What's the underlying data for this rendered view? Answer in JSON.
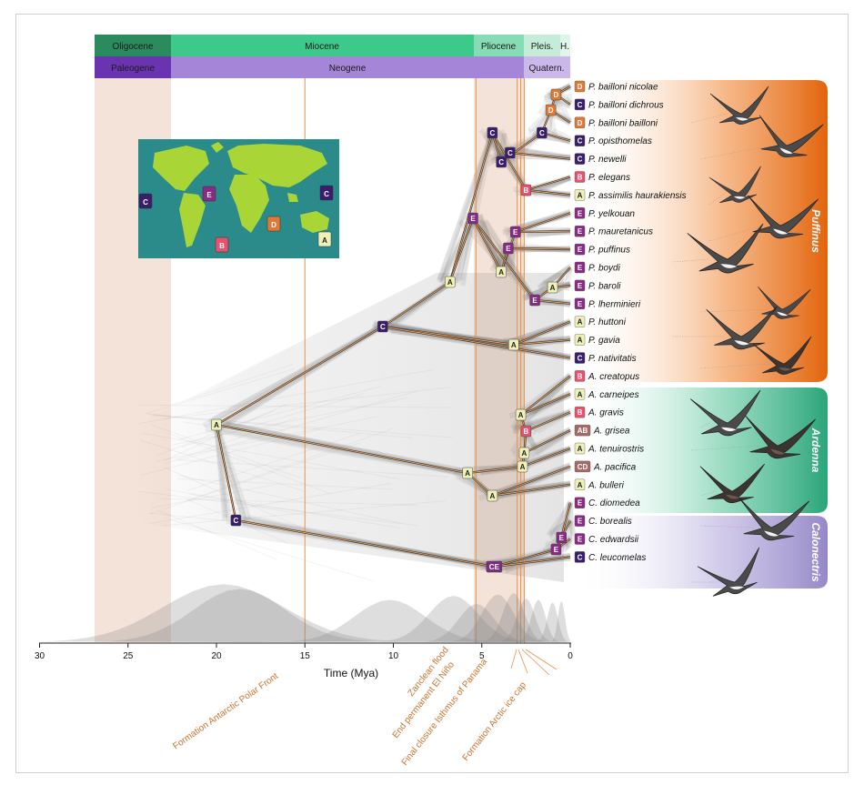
{
  "epochs": [
    "Oligocene",
    "Miocene",
    "Pliocene",
    "Pleis.",
    "H."
  ],
  "periods": [
    "Paleogene",
    "Neogene",
    "Quatern."
  ],
  "axis": {
    "title": "Time (Mya)",
    "ticks": [
      "30",
      "25",
      "20",
      "15",
      "10",
      "5",
      "0"
    ]
  },
  "events": [
    "Formation Antarctic Polar Front",
    "Zanclean flood",
    "End permanent El Niño",
    "Final closure Isthmus of Panama",
    "Formation Arctic ice cap"
  ],
  "clades": [
    "Puffinus",
    "Ardenna",
    "Calonectris"
  ],
  "map_labels": [
    "C",
    "E",
    "C",
    "D",
    "B",
    "A"
  ],
  "taxa": [
    {
      "code": "D",
      "name": "P. bailloni nicolae"
    },
    {
      "code": "C",
      "name": "P. bailloni dichrous"
    },
    {
      "code": "D",
      "name": "P. bailloni bailloni"
    },
    {
      "code": "C",
      "name": "P. opisthomelas"
    },
    {
      "code": "C",
      "name": "P. newelli"
    },
    {
      "code": "B",
      "name": "P. elegans"
    },
    {
      "code": "A",
      "name": "P. assimilis haurakiensis"
    },
    {
      "code": "E",
      "name": "P. yelkouan"
    },
    {
      "code": "E",
      "name": "P. mauretanicus"
    },
    {
      "code": "E",
      "name": "P. puffinus"
    },
    {
      "code": "E",
      "name": "P. boydi"
    },
    {
      "code": "E",
      "name": "P. baroli"
    },
    {
      "code": "E",
      "name": "P. lherminieri"
    },
    {
      "code": "A",
      "name": "P. huttoni"
    },
    {
      "code": "A",
      "name": "P. gavia"
    },
    {
      "code": "C",
      "name": "P. nativitatis"
    },
    {
      "code": "B",
      "name": "A. creatopus"
    },
    {
      "code": "A",
      "name": "A. carneipes"
    },
    {
      "code": "B",
      "name": "A. gravis"
    },
    {
      "code": "AB",
      "name": "A. grisea"
    },
    {
      "code": "A",
      "name": "A. tenuirostris"
    },
    {
      "code": "CD",
      "name": "A. pacifica"
    },
    {
      "code": "A",
      "name": "A. bulleri"
    },
    {
      "code": "E",
      "name": "C. diomedea"
    },
    {
      "code": "E",
      "name": "C. borealis"
    },
    {
      "code": "E",
      "name": "C. edwardsii"
    },
    {
      "code": "C",
      "name": "C. leucomelas"
    }
  ],
  "nodes": [
    {
      "code": "D"
    },
    {
      "code": "D"
    },
    {
      "code": "C"
    },
    {
      "code": "C"
    },
    {
      "code": "C"
    },
    {
      "code": "B"
    },
    {
      "code": "C"
    },
    {
      "code": "E"
    },
    {
      "code": "E"
    },
    {
      "code": "E"
    },
    {
      "code": "E"
    },
    {
      "code": "A"
    },
    {
      "code": "A"
    },
    {
      "code": "C"
    },
    {
      "code": "A"
    },
    {
      "code": "B"
    },
    {
      "code": "A"
    },
    {
      "code": "A"
    },
    {
      "code": "A"
    },
    {
      "code": "A"
    },
    {
      "code": "A"
    },
    {
      "code": "C"
    },
    {
      "code": "CE"
    },
    {
      "code": "E"
    },
    {
      "code": "E"
    },
    {
      "code": "A"
    },
    {
      "code": "A"
    }
  ],
  "colors": {
    "A": "#eef0b8",
    "B": "#e8506e",
    "C": "#3a1e6e",
    "D": "#de7a38",
    "E": "#8a2a86",
    "AB": "#a86868",
    "CD": "#a86868",
    "CE": "#7c2c82",
    "oligocene": "#2a8c5e",
    "miocene": "#3cc98a",
    "pliocene": "#86dcb6",
    "paleogene": "#6a34b0",
    "neogene": "#a585d8",
    "quaternary": "#cbb8ea",
    "puffinus": "#e2640c",
    "ardenna": "#2aa57a",
    "calonectris": "#9688c8",
    "event_line": "#e8924a",
    "map_sea": "#2b8b8b",
    "map_land": "#a9d636"
  }
}
